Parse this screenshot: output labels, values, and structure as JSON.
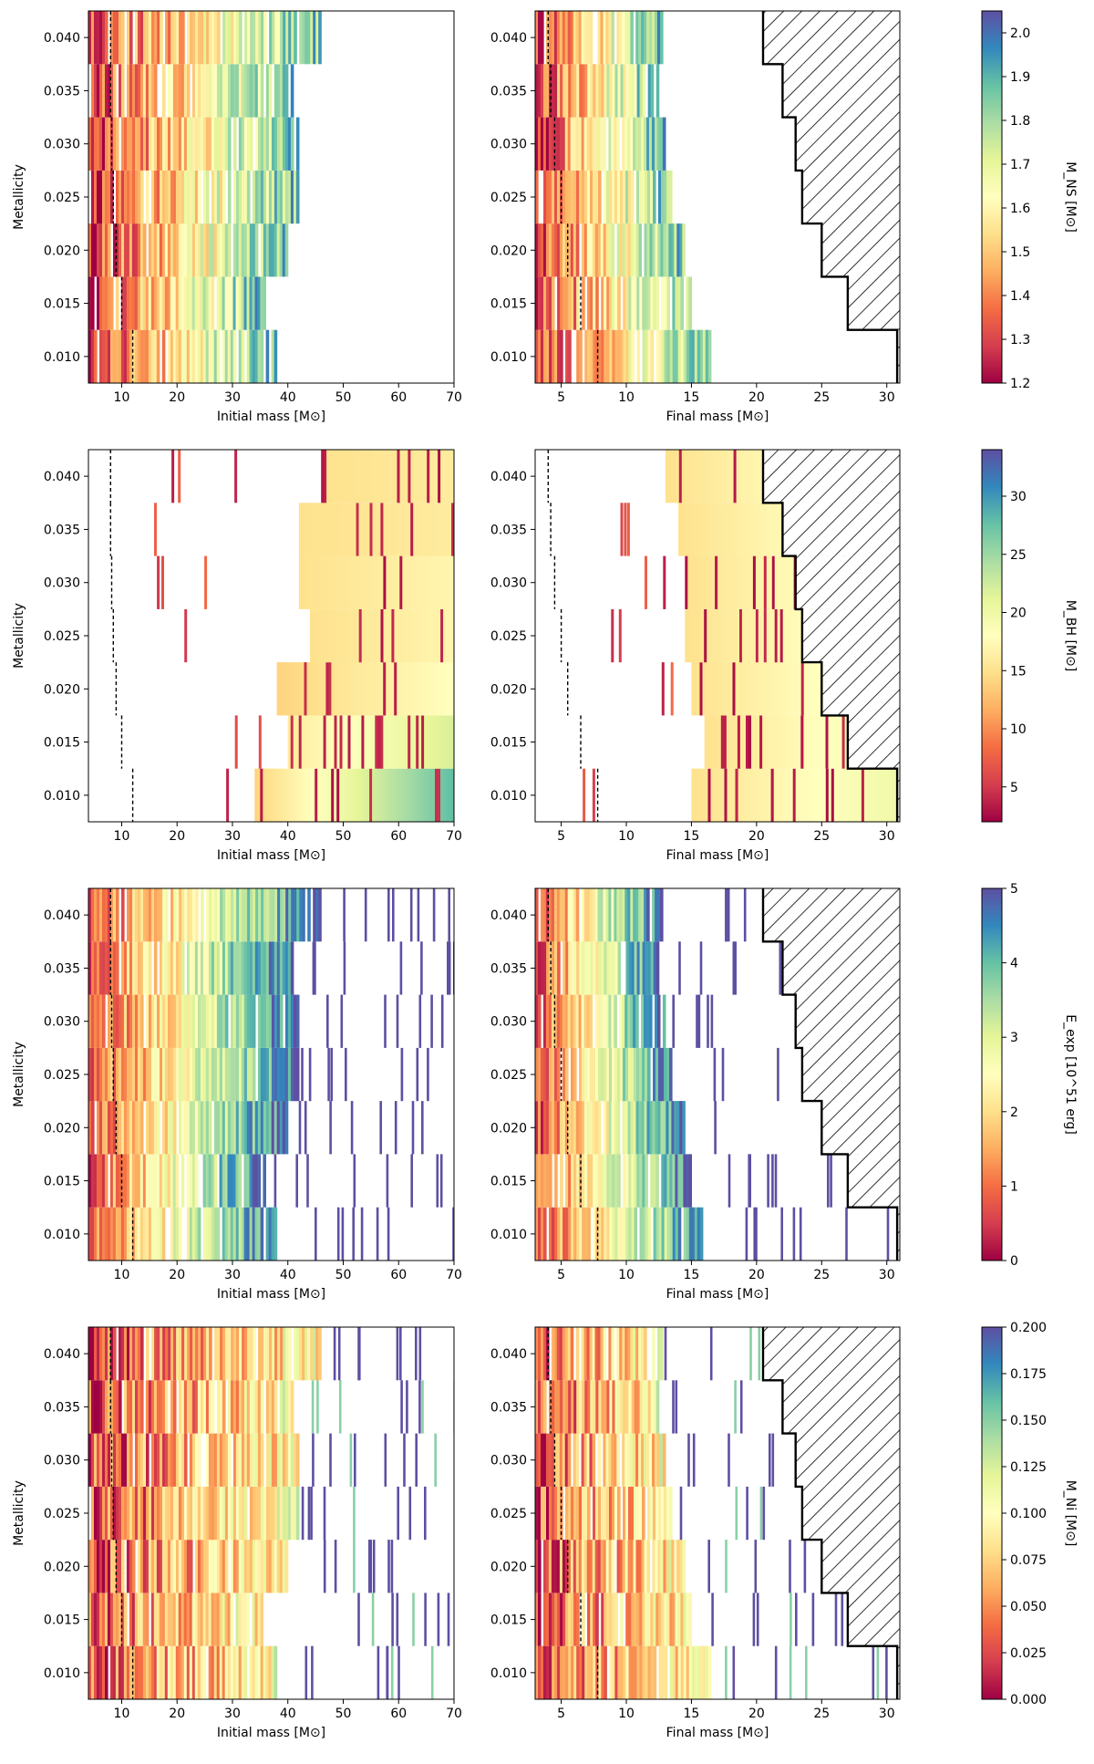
{
  "figure": {
    "xlabel_left": "Initial mass [M⊙]",
    "xlabel_right": "Final mass [M⊙]",
    "ylabel": "Metallicity"
  },
  "chart_data": [
    {
      "type": "heatmap",
      "quantity": "M_NS",
      "colorbar_label": "M_NS [M⊙]",
      "colorbar_range": [
        1.2,
        2.05
      ],
      "colorbar_ticks": [
        "1.2",
        "1.3",
        "1.4",
        "1.5",
        "1.6",
        "1.7",
        "1.8",
        "1.9",
        "2.0"
      ],
      "colormap": "Spectral",
      "metallicity_ticks": [
        "0.010",
        "0.015",
        "0.020",
        "0.025",
        "0.030",
        "0.035",
        "0.040"
      ],
      "rows": [
        0.01,
        0.015,
        0.02,
        0.025,
        0.03,
        0.035,
        0.04
      ],
      "initial_mass": {
        "xlim": [
          4,
          70
        ],
        "xticks": [
          "10",
          "20",
          "30",
          "40",
          "50",
          "60",
          "70"
        ],
        "max_mass": [
          38,
          36,
          40,
          42,
          42,
          41,
          46
        ],
        "dashed_line": [
          12,
          10,
          9,
          8.5,
          8.2,
          8,
          8
        ]
      },
      "final_mass": {
        "xlim": [
          3,
          31
        ],
        "xticks": [
          "5",
          "10",
          "15",
          "20",
          "25",
          "30"
        ],
        "max_mass": [
          16.5,
          15,
          14.5,
          13.5,
          13,
          12.5,
          12.8
        ],
        "dashed_line": [
          7.8,
          6.5,
          5.5,
          5,
          4.5,
          4.2,
          4
        ]
      },
      "hatched_region_start": [
        30.8,
        27,
        25,
        23.5,
        23,
        22,
        20.5
      ]
    },
    {
      "type": "heatmap",
      "quantity": "M_BH",
      "colorbar_label": "M_BH [M⊙]",
      "colorbar_range": [
        2,
        34
      ],
      "colorbar_ticks": [
        "5",
        "10",
        "15",
        "20",
        "25",
        "30"
      ],
      "colormap": "Spectral",
      "metallicity_ticks": [
        "0.010",
        "0.015",
        "0.020",
        "0.025",
        "0.030",
        "0.035",
        "0.040"
      ],
      "rows": [
        0.01,
        0.015,
        0.02,
        0.025,
        0.03,
        0.035,
        0.04
      ],
      "initial_mass": {
        "xlim": [
          4,
          70
        ],
        "xticks": [
          "10",
          "20",
          "30",
          "40",
          "50",
          "60",
          "70"
        ],
        "bh_start": [
          34,
          40,
          38,
          44,
          42,
          42,
          46
        ],
        "bh_value_range": [
          [
            14,
            28
          ],
          [
            16,
            22
          ],
          [
            14,
            18
          ],
          [
            15,
            17
          ],
          [
            15,
            17
          ],
          [
            15,
            16
          ],
          [
            15,
            16
          ]
        ],
        "dashed_line": [
          12,
          10,
          9,
          8.5,
          8.2,
          8,
          8
        ]
      },
      "final_mass": {
        "xlim": [
          3,
          31
        ],
        "xticks": [
          "5",
          "10",
          "15",
          "20",
          "25",
          "30"
        ],
        "bh_start": [
          15,
          16,
          15,
          14.5,
          14.5,
          14,
          13
        ],
        "dashed_line": [
          7.8,
          6.5,
          5.5,
          5,
          4.5,
          4.2,
          4
        ]
      },
      "hatched_region_start": [
        30.8,
        27,
        25,
        23.5,
        23,
        22,
        20.5
      ]
    },
    {
      "type": "heatmap",
      "quantity": "E_exp",
      "colorbar_label": "E_exp [10^51 erg]",
      "colorbar_range": [
        0,
        5
      ],
      "colorbar_ticks": [
        "0",
        "1",
        "2",
        "3",
        "4",
        "5"
      ],
      "colormap": "Spectral",
      "metallicity_ticks": [
        "0.010",
        "0.015",
        "0.020",
        "0.025",
        "0.030",
        "0.035",
        "0.040"
      ],
      "rows": [
        0.01,
        0.015,
        0.02,
        0.025,
        0.03,
        0.035,
        0.04
      ],
      "initial_mass": {
        "xlim": [
          4,
          70
        ],
        "xticks": [
          "10",
          "20",
          "30",
          "40",
          "50",
          "60",
          "70"
        ],
        "max_mass": [
          38,
          36,
          40,
          42,
          42,
          41,
          46
        ],
        "dashed_line": [
          12,
          10,
          9,
          8.5,
          8.2,
          8,
          8
        ]
      },
      "final_mass": {
        "xlim": [
          3,
          31
        ],
        "xticks": [
          "5",
          "10",
          "15",
          "20",
          "25",
          "30"
        ],
        "max_mass": [
          16.5,
          15,
          14.5,
          13.5,
          13,
          12.5,
          12.8
        ],
        "dashed_line": [
          7.8,
          6.5,
          5.5,
          5,
          4.5,
          4.2,
          4
        ]
      },
      "hatched_region_start": [
        30.8,
        27,
        25,
        23.5,
        23,
        22,
        20.5
      ]
    },
    {
      "type": "heatmap",
      "quantity": "M_Ni",
      "colorbar_label": "M_Ni [M⊙]",
      "colorbar_range": [
        0,
        0.2
      ],
      "colorbar_ticks": [
        "0.000",
        "0.025",
        "0.050",
        "0.075",
        "0.100",
        "0.125",
        "0.150",
        "0.175",
        "0.200"
      ],
      "colormap": "Spectral",
      "metallicity_ticks": [
        "0.010",
        "0.015",
        "0.020",
        "0.025",
        "0.030",
        "0.035",
        "0.040"
      ],
      "rows": [
        0.01,
        0.015,
        0.02,
        0.025,
        0.03,
        0.035,
        0.04
      ],
      "initial_mass": {
        "xlim": [
          4,
          70
        ],
        "xticks": [
          "10",
          "20",
          "30",
          "40",
          "50",
          "60",
          "70"
        ],
        "max_mass": [
          38,
          36,
          40,
          42,
          42,
          41,
          46
        ],
        "dashed_line": [
          12,
          10,
          9,
          8.5,
          8.2,
          8,
          8
        ]
      },
      "final_mass": {
        "xlim": [
          3,
          31
        ],
        "xticks": [
          "5",
          "10",
          "15",
          "20",
          "25",
          "30"
        ],
        "max_mass": [
          16.5,
          15,
          14.5,
          13.5,
          13,
          12.5,
          12.8
        ],
        "dashed_line": [
          7.8,
          6.5,
          5.5,
          5,
          4.5,
          4.2,
          4
        ]
      },
      "hatched_region_start": [
        30.8,
        27,
        25,
        23.5,
        23,
        22,
        20.5
      ]
    }
  ]
}
